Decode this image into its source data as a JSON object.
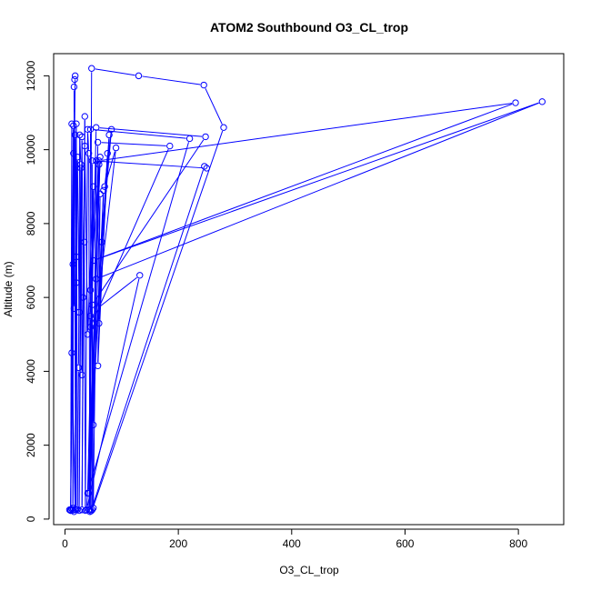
{
  "chart_data": {
    "type": "line",
    "title": "ATOM2 Southbound O3_CL_trop",
    "xlabel": "O3_CL_trop",
    "ylabel": "Altitude (m)",
    "xlim": [
      -20,
      880
    ],
    "ylim": [
      -150,
      12600
    ],
    "x_ticks": [
      0,
      200,
      400,
      600,
      800
    ],
    "y_ticks": [
      0,
      2000,
      4000,
      6000,
      8000,
      10000,
      12000
    ],
    "grid": false,
    "marker": "open-circle",
    "series": [
      {
        "color": "#0000ff",
        "points": [
          [
            8,
            250
          ],
          [
            10,
            230
          ],
          [
            12,
            270
          ],
          [
            14,
            240
          ],
          [
            16,
            200
          ],
          [
            18,
            260
          ],
          [
            12,
            4500
          ],
          [
            15,
            10650
          ],
          [
            14,
            6900
          ],
          [
            10,
            230
          ],
          [
            18,
            12000
          ],
          [
            17,
            11900
          ],
          [
            16,
            11700
          ],
          [
            19,
            250
          ],
          [
            20,
            7100
          ],
          [
            18,
            260
          ],
          [
            20,
            10700
          ],
          [
            22,
            260
          ],
          [
            24,
            4100
          ],
          [
            26,
            10400
          ],
          [
            28,
            9600
          ],
          [
            25,
            230
          ],
          [
            30,
            10350
          ],
          [
            32,
            6000
          ],
          [
            30,
            250
          ],
          [
            35,
            10900
          ],
          [
            34,
            7500
          ],
          [
            36,
            230
          ],
          [
            40,
            10550
          ],
          [
            42,
            9900
          ],
          [
            44,
            200
          ],
          [
            45,
            5500
          ],
          [
            47,
            12200
          ],
          [
            130,
            12000
          ],
          [
            245,
            11750
          ],
          [
            280,
            10600
          ],
          [
            48,
            250
          ],
          [
            48,
            9700
          ],
          [
            250,
            9500
          ],
          [
            246,
            9550
          ],
          [
            46,
            220
          ],
          [
            45,
            10550
          ],
          [
            220,
            10300
          ],
          [
            40,
            700
          ],
          [
            55,
            10600
          ],
          [
            248,
            10350
          ],
          [
            48,
            5800
          ],
          [
            50,
            300
          ],
          [
            58,
            10200
          ],
          [
            185,
            10100
          ],
          [
            45,
            5200
          ],
          [
            44,
            250
          ],
          [
            60,
            9700
          ],
          [
            795,
            11270
          ],
          [
            50,
            7000
          ],
          [
            842,
            11300
          ],
          [
            55,
            6500
          ],
          [
            62,
            9800
          ],
          [
            42,
            250
          ],
          [
            68,
            8900
          ],
          [
            60,
            5300
          ],
          [
            78,
            10400
          ],
          [
            65,
            7500
          ],
          [
            82,
            10550
          ],
          [
            70,
            9000
          ],
          [
            90,
            10050
          ],
          [
            57,
            5700
          ],
          [
            132,
            6600
          ],
          [
            38,
            250
          ],
          [
            75,
            9900
          ],
          [
            58,
            4150
          ],
          [
            62,
            8800
          ],
          [
            50,
            2550
          ],
          [
            55,
            9700
          ],
          [
            45,
            6200
          ],
          [
            60,
            9600
          ],
          [
            42,
            700
          ],
          [
            50,
            9000
          ],
          [
            40,
            5000
          ],
          [
            35,
            10100
          ],
          [
            30,
            3900
          ],
          [
            28,
            9500
          ],
          [
            25,
            5600
          ],
          [
            22,
            9800
          ],
          [
            20,
            6400
          ],
          [
            18,
            10400
          ],
          [
            16,
            5700
          ],
          [
            15,
            9900
          ],
          [
            14,
            300
          ],
          [
            12,
            10700
          ],
          [
            10,
            250
          ]
        ]
      }
    ]
  }
}
